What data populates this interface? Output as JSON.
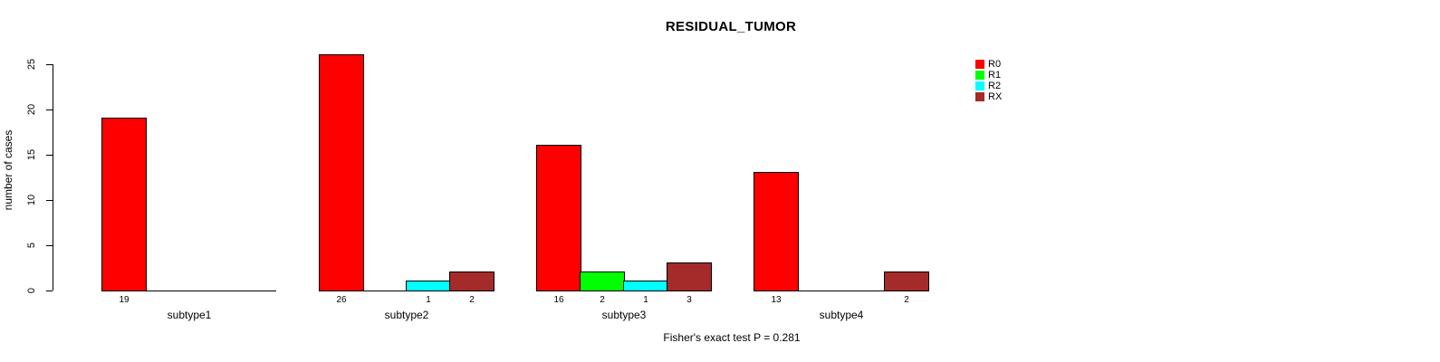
{
  "chart_data": {
    "type": "bar",
    "title": "RESIDUAL_TUMOR",
    "xlabel": "",
    "ylabel": "number of cases",
    "categories": [
      "subtype1",
      "subtype2",
      "subtype3",
      "subtype4"
    ],
    "series": [
      {
        "name": "R0",
        "color": "#ff0000",
        "values": [
          19,
          26,
          16,
          13
        ]
      },
      {
        "name": "R1",
        "color": "#00ff00",
        "values": [
          0,
          0,
          2,
          0
        ]
      },
      {
        "name": "R2",
        "color": "#00ffff",
        "values": [
          0,
          1,
          1,
          0
        ]
      },
      {
        "name": "RX",
        "color": "#a52a2a",
        "values": [
          0,
          2,
          3,
          2
        ]
      }
    ],
    "bar_value_labels": [
      [
        "19",
        "",
        "",
        ""
      ],
      [
        "26",
        "",
        "1",
        "2"
      ],
      [
        "16",
        "2",
        "1",
        "3"
      ],
      [
        "13",
        "",
        "",
        "2"
      ]
    ],
    "yticks": [
      0,
      5,
      10,
      15,
      20,
      25
    ],
    "ylim": [
      0,
      26
    ],
    "grid": false,
    "legend_position": "top-right",
    "legend": [
      "R0",
      "R1",
      "R2",
      "RX"
    ],
    "annotation": "Fisher's exact test P = 0.281"
  }
}
